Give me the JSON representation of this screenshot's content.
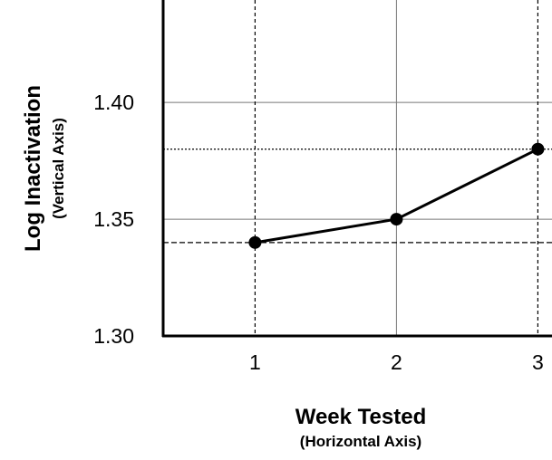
{
  "chart_data": {
    "type": "line",
    "x": [
      1,
      2,
      3
    ],
    "series": [
      {
        "values": [
          1.34,
          1.35,
          1.38
        ]
      }
    ],
    "xlabel": "Week Tested",
    "xlabel_sub": "(Horizontal Axis)",
    "ylabel": "Log Inactivation",
    "ylabel_sub": "(Vertical Axis)",
    "x_ticks": [
      "1",
      "2",
      "3"
    ],
    "y_ticks": [
      "1.30",
      "1.35",
      "1.40"
    ],
    "xlim": [
      0.35,
      3.1
    ],
    "ylim": [
      1.3,
      1.44
    ],
    "grid": true,
    "legend": "none",
    "reference_lines": {
      "vertical_x": [
        1,
        3
      ],
      "horizontal_y": [
        1.34,
        1.38
      ]
    },
    "colors": {
      "line": "#000000",
      "marker": "#000000",
      "grid": "#000000",
      "background": "#ffffff"
    }
  }
}
